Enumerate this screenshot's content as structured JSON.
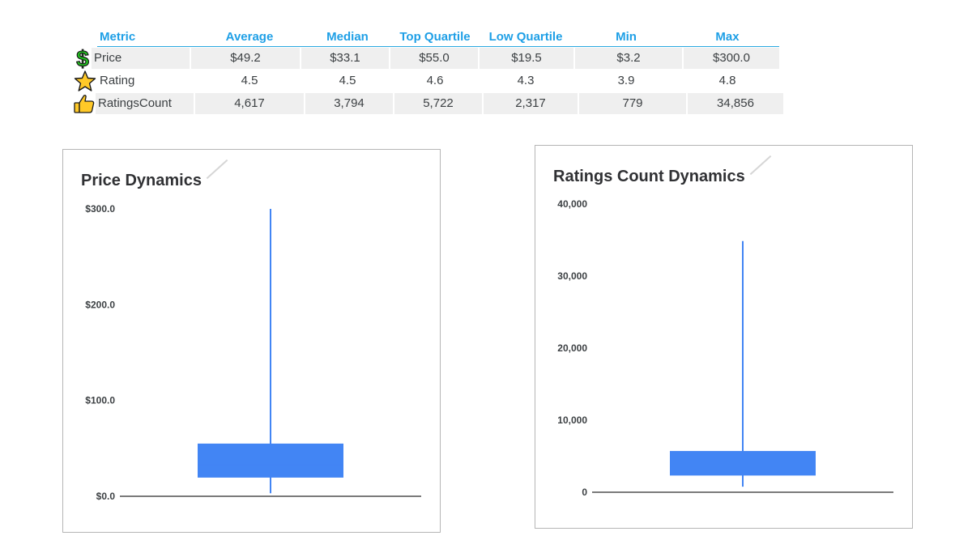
{
  "table": {
    "headers": [
      "Metric",
      "Average",
      "Median",
      "Top Quartile",
      "Low Quartile",
      "Min",
      "Max"
    ],
    "rows": [
      {
        "icon": "dollar-icon",
        "cells": [
          "Price",
          "$49.2",
          "$33.1",
          "$55.0",
          "$19.5",
          "$3.2",
          "$300.0"
        ]
      },
      {
        "icon": "star-icon",
        "cells": [
          "Rating",
          "4.5",
          "4.5",
          "4.6",
          "4.3",
          "3.9",
          "4.8"
        ]
      },
      {
        "icon": "thumbs-up-icon",
        "cells": [
          "RatingsCount",
          "4,617",
          "3,794",
          "5,722",
          "2,317",
          "779",
          "34,856"
        ]
      }
    ]
  },
  "colors": {
    "header": "#1e9fe6",
    "box": "#4285f4",
    "axis": "#7a7a7a"
  },
  "chart_data": [
    {
      "type": "box",
      "title": "Price Dynamics",
      "series": [
        {
          "min": 3.2,
          "q1": 19.5,
          "median": 33.1,
          "q3": 55.0,
          "max": 300.0
        }
      ],
      "yticks": [
        0,
        100,
        200,
        300
      ],
      "ytick_labels": [
        "$0.0",
        "$100.0",
        "$200.0",
        "$300.0"
      ],
      "ylim": [
        0,
        300
      ],
      "grid": false
    },
    {
      "type": "box",
      "title": "Ratings Count Dynamics",
      "series": [
        {
          "min": 779,
          "q1": 2317,
          "median": 3794,
          "q3": 5722,
          "max": 34856
        }
      ],
      "yticks": [
        0,
        10000,
        20000,
        30000,
        40000
      ],
      "ytick_labels": [
        "0",
        "10,000",
        "20,000",
        "30,000",
        "40,000"
      ],
      "ylim": [
        0,
        40000
      ],
      "grid": false
    }
  ]
}
